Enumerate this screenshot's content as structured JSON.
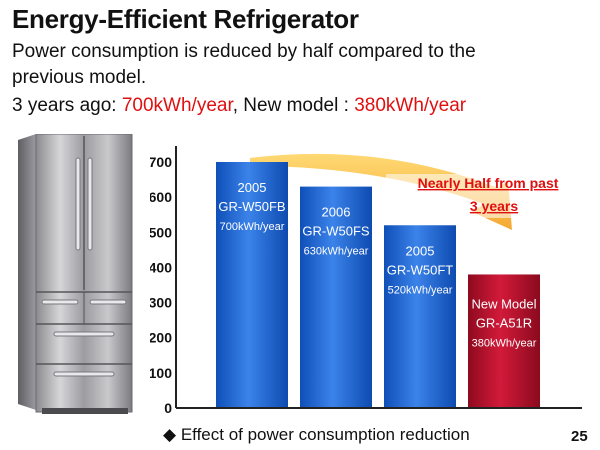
{
  "slide": {
    "title": "Energy-Efficient Refrigerator",
    "subtitle_line1": "Power consumption is reduced by half compared to the",
    "subtitle_line2": "previous model.",
    "compare_prefix": "3 years ago: ",
    "old_value": "700kWh/year",
    "compare_mid": ", New model : ",
    "new_value": "380kWh/year",
    "footer_bullet": "◆",
    "footer_text": "Effect of power consumption reduction",
    "page_number": "25"
  },
  "colors": {
    "accent_red": "#e01010",
    "bar_blue": "#1b62d0",
    "bar_red": "#b5102a",
    "arrow_orange": "#f6a11a"
  },
  "chart_data": {
    "type": "bar",
    "categories": [
      "2005 GR-W50FB",
      "2006 GR-W50FS",
      "2005 GR-W50FT",
      "New Model GR-A51R"
    ],
    "values": [
      700,
      630,
      520,
      380
    ],
    "ylim": [
      0,
      700
    ],
    "yticks": [
      "0",
      "100",
      "200",
      "300",
      "400",
      "500",
      "600",
      "700"
    ],
    "bar_labels": [
      [
        "2005",
        "GR-W50FB",
        "700kWh/year"
      ],
      [
        "2006",
        "GR-W50FS",
        "630kWh/year"
      ],
      [
        "2005",
        "GR-W50FT",
        "520kWh/year"
      ],
      [
        "New Model",
        "GR-A51R",
        "380kWh/year"
      ]
    ],
    "annotation": [
      "Nearly Half from past",
      "3 years"
    ],
    "grid": false,
    "xlabel": "",
    "ylabel": ""
  }
}
